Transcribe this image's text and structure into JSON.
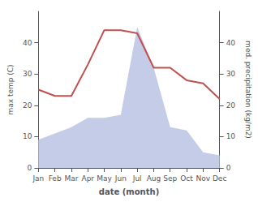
{
  "chart_data": {
    "type": "line",
    "xlabel": "date (month)",
    "ylabel": "max temp (C)",
    "y2label": "med. precipitation (kg/m2)",
    "categories": [
      "Jan",
      "Feb",
      "Mar",
      "Apr",
      "May",
      "Jun",
      "Jul",
      "Aug",
      "Sep",
      "Oct",
      "Nov",
      "Dec"
    ],
    "series": [
      {
        "type": "line",
        "color": "#c0504d",
        "values": [
          25,
          23,
          23,
          33,
          44,
          44,
          43,
          32,
          32,
          28,
          27,
          22
        ]
      },
      {
        "type": "area",
        "color": "#c5cce8",
        "axis": "y2",
        "values": [
          9,
          11,
          13,
          16,
          16,
          17,
          45,
          32,
          13,
          12,
          5,
          4
        ]
      }
    ],
    "ylim": [
      0,
      50
    ],
    "yticks": [
      0,
      10,
      20,
      30,
      40
    ],
    "y2lim": [
      0,
      50
    ],
    "y2ticks": [
      0,
      10,
      20,
      30,
      40
    ],
    "grid": false
  }
}
